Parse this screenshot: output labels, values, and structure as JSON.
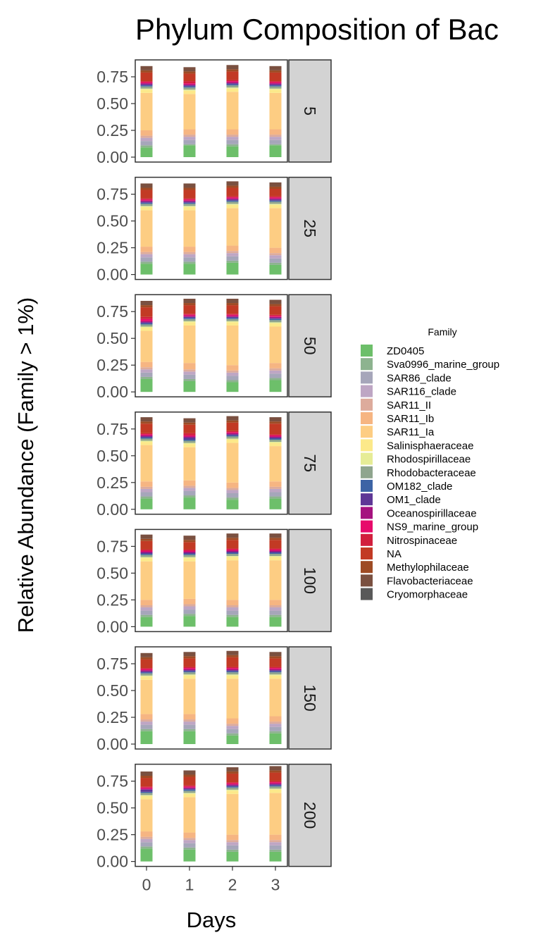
{
  "chart_data": {
    "type": "bar",
    "stacked": true,
    "title": "Phylum Composition of Bac",
    "xlabel": "Days",
    "ylabel": "Relative Abundance (Family > 1%)",
    "x_ticks": [
      "0",
      "1",
      "2",
      "3"
    ],
    "y_ticks": [
      "0.00",
      "0.25",
      "0.50",
      "0.75"
    ],
    "ylim": [
      0,
      0.9
    ],
    "facet_strip_position": "right",
    "legend": {
      "title": "Family",
      "placement": "right",
      "items": [
        {
          "name": "ZD0405",
          "color": "#6DBF6A"
        },
        {
          "name": "Sva0996_marine_group",
          "color": "#8DB38F"
        },
        {
          "name": "SAR86_clade",
          "color": "#A6A6BA"
        },
        {
          "name": "SAR116_clade",
          "color": "#BEA6C4"
        },
        {
          "name": "SAR11_II",
          "color": "#DDAB9C"
        },
        {
          "name": "SAR11_Ib",
          "color": "#F6B582"
        },
        {
          "name": "SAR11_Ia",
          "color": "#FDCD83"
        },
        {
          "name": "Salinisphaeraceae",
          "color": "#FCE98A"
        },
        {
          "name": "Rhodospirillaceae",
          "color": "#E6EC96"
        },
        {
          "name": "Rhodobacteraceae",
          "color": "#8FA58E"
        },
        {
          "name": "OM182_clade",
          "color": "#3D64A5"
        },
        {
          "name": "OM1_clade",
          "color": "#5E3796"
        },
        {
          "name": "Oceanospirillaceae",
          "color": "#A5127F"
        },
        {
          "name": "NS9_marine_group",
          "color": "#E70A6B"
        },
        {
          "name": "Nitrospinaceae",
          "color": "#D21F3D"
        },
        {
          "name": "NA",
          "color": "#C23A24"
        },
        {
          "name": "Methylophilaceae",
          "color": "#9E4B24"
        },
        {
          "name": "Flavobacteriaceae",
          "color": "#7A5040"
        },
        {
          "name": "Cryomorphaceae",
          "color": "#595959"
        }
      ]
    },
    "facets": [
      {
        "label": "5",
        "bars": [
          [
            0.09,
            0.02,
            0.04,
            0.03,
            0.02,
            0.05,
            0.35,
            0.03,
            0.01,
            0.02,
            0.01,
            0.01,
            0.01,
            0.01,
            0.01,
            0.08,
            0.02,
            0.04,
            0.0
          ],
          [
            0.11,
            0.01,
            0.04,
            0.03,
            0.02,
            0.05,
            0.33,
            0.03,
            0.01,
            0.02,
            0.01,
            0.01,
            0.01,
            0.01,
            0.02,
            0.07,
            0.02,
            0.04,
            0.0
          ],
          [
            0.1,
            0.02,
            0.04,
            0.03,
            0.02,
            0.05,
            0.35,
            0.03,
            0.01,
            0.02,
            0.01,
            0.01,
            0.01,
            0.01,
            0.01,
            0.08,
            0.02,
            0.04,
            0.0
          ],
          [
            0.11,
            0.01,
            0.04,
            0.03,
            0.02,
            0.05,
            0.34,
            0.03,
            0.01,
            0.02,
            0.01,
            0.01,
            0.01,
            0.01,
            0.01,
            0.08,
            0.02,
            0.04,
            0.0
          ]
        ]
      },
      {
        "label": "25",
        "bars": [
          [
            0.1,
            0.02,
            0.04,
            0.03,
            0.02,
            0.05,
            0.34,
            0.03,
            0.01,
            0.02,
            0.01,
            0.01,
            0.01,
            0.01,
            0.01,
            0.08,
            0.02,
            0.04,
            0.0
          ],
          [
            0.1,
            0.02,
            0.04,
            0.03,
            0.02,
            0.05,
            0.34,
            0.03,
            0.01,
            0.02,
            0.01,
            0.01,
            0.01,
            0.01,
            0.01,
            0.08,
            0.02,
            0.04,
            0.0
          ],
          [
            0.11,
            0.02,
            0.04,
            0.03,
            0.02,
            0.05,
            0.35,
            0.03,
            0.01,
            0.02,
            0.01,
            0.01,
            0.01,
            0.01,
            0.01,
            0.08,
            0.02,
            0.04,
            0.0
          ],
          [
            0.09,
            0.02,
            0.04,
            0.03,
            0.02,
            0.05,
            0.37,
            0.03,
            0.01,
            0.02,
            0.01,
            0.01,
            0.01,
            0.01,
            0.01,
            0.07,
            0.02,
            0.04,
            0.0
          ]
        ]
      },
      {
        "label": "50",
        "bars": [
          [
            0.12,
            0.02,
            0.04,
            0.03,
            0.02,
            0.05,
            0.29,
            0.03,
            0.01,
            0.02,
            0.01,
            0.01,
            0.01,
            0.02,
            0.02,
            0.09,
            0.02,
            0.04,
            0.0
          ],
          [
            0.1,
            0.02,
            0.04,
            0.03,
            0.02,
            0.06,
            0.35,
            0.03,
            0.01,
            0.02,
            0.01,
            0.01,
            0.01,
            0.01,
            0.01,
            0.08,
            0.02,
            0.04,
            0.0
          ],
          [
            0.09,
            0.02,
            0.04,
            0.03,
            0.02,
            0.05,
            0.37,
            0.03,
            0.01,
            0.02,
            0.01,
            0.01,
            0.01,
            0.01,
            0.01,
            0.08,
            0.02,
            0.04,
            0.0
          ],
          [
            0.11,
            0.02,
            0.04,
            0.03,
            0.02,
            0.05,
            0.34,
            0.03,
            0.01,
            0.02,
            0.01,
            0.01,
            0.01,
            0.01,
            0.01,
            0.08,
            0.02,
            0.04,
            0.0
          ]
        ]
      },
      {
        "label": "75",
        "bars": [
          [
            0.1,
            0.02,
            0.04,
            0.03,
            0.02,
            0.05,
            0.34,
            0.03,
            0.01,
            0.02,
            0.01,
            0.01,
            0.01,
            0.01,
            0.01,
            0.09,
            0.02,
            0.04,
            0.0
          ],
          [
            0.11,
            0.02,
            0.04,
            0.03,
            0.02,
            0.05,
            0.31,
            0.03,
            0.01,
            0.02,
            0.01,
            0.02,
            0.01,
            0.01,
            0.02,
            0.08,
            0.02,
            0.04,
            0.0
          ],
          [
            0.09,
            0.02,
            0.04,
            0.03,
            0.02,
            0.05,
            0.37,
            0.03,
            0.01,
            0.02,
            0.01,
            0.01,
            0.01,
            0.01,
            0.01,
            0.08,
            0.02,
            0.04,
            0.0
          ],
          [
            0.1,
            0.02,
            0.04,
            0.03,
            0.02,
            0.05,
            0.33,
            0.03,
            0.01,
            0.02,
            0.01,
            0.01,
            0.01,
            0.01,
            0.01,
            0.1,
            0.02,
            0.04,
            0.0
          ]
        ]
      },
      {
        "label": "100",
        "bars": [
          [
            0.09,
            0.02,
            0.04,
            0.03,
            0.02,
            0.05,
            0.36,
            0.03,
            0.01,
            0.02,
            0.01,
            0.01,
            0.01,
            0.01,
            0.01,
            0.08,
            0.02,
            0.04,
            0.0
          ],
          [
            0.1,
            0.02,
            0.04,
            0.03,
            0.02,
            0.05,
            0.35,
            0.03,
            0.01,
            0.02,
            0.01,
            0.01,
            0.01,
            0.01,
            0.01,
            0.07,
            0.02,
            0.04,
            0.0
          ],
          [
            0.09,
            0.02,
            0.04,
            0.03,
            0.02,
            0.05,
            0.37,
            0.03,
            0.01,
            0.02,
            0.01,
            0.01,
            0.01,
            0.01,
            0.01,
            0.08,
            0.02,
            0.04,
            0.0
          ],
          [
            0.09,
            0.02,
            0.04,
            0.03,
            0.02,
            0.05,
            0.37,
            0.03,
            0.01,
            0.02,
            0.01,
            0.01,
            0.01,
            0.01,
            0.01,
            0.08,
            0.02,
            0.04,
            0.0
          ]
        ]
      },
      {
        "label": "150",
        "bars": [
          [
            0.12,
            0.02,
            0.04,
            0.03,
            0.02,
            0.05,
            0.32,
            0.03,
            0.01,
            0.02,
            0.01,
            0.01,
            0.01,
            0.01,
            0.01,
            0.08,
            0.02,
            0.04,
            0.0
          ],
          [
            0.12,
            0.02,
            0.04,
            0.03,
            0.02,
            0.05,
            0.33,
            0.03,
            0.01,
            0.02,
            0.01,
            0.01,
            0.01,
            0.01,
            0.01,
            0.08,
            0.02,
            0.04,
            0.0
          ],
          [
            0.08,
            0.02,
            0.04,
            0.03,
            0.02,
            0.05,
            0.37,
            0.03,
            0.01,
            0.02,
            0.01,
            0.01,
            0.01,
            0.01,
            0.01,
            0.09,
            0.02,
            0.04,
            0.0
          ],
          [
            0.1,
            0.02,
            0.04,
            0.03,
            0.02,
            0.05,
            0.35,
            0.03,
            0.01,
            0.02,
            0.01,
            0.01,
            0.01,
            0.01,
            0.01,
            0.08,
            0.02,
            0.04,
            0.0
          ]
        ]
      },
      {
        "label": "200",
        "bars": [
          [
            0.12,
            0.02,
            0.04,
            0.03,
            0.02,
            0.05,
            0.3,
            0.03,
            0.01,
            0.02,
            0.01,
            0.02,
            0.01,
            0.01,
            0.01,
            0.08,
            0.02,
            0.04,
            0.0
          ],
          [
            0.11,
            0.02,
            0.04,
            0.03,
            0.02,
            0.05,
            0.33,
            0.03,
            0.01,
            0.02,
            0.01,
            0.01,
            0.01,
            0.01,
            0.01,
            0.08,
            0.02,
            0.04,
            0.0
          ],
          [
            0.09,
            0.02,
            0.04,
            0.03,
            0.02,
            0.05,
            0.38,
            0.03,
            0.01,
            0.02,
            0.01,
            0.01,
            0.01,
            0.01,
            0.01,
            0.08,
            0.02,
            0.04,
            0.0
          ],
          [
            0.09,
            0.02,
            0.04,
            0.03,
            0.02,
            0.05,
            0.39,
            0.03,
            0.01,
            0.02,
            0.01,
            0.01,
            0.01,
            0.01,
            0.01,
            0.08,
            0.02,
            0.04,
            0.0
          ]
        ]
      }
    ]
  }
}
